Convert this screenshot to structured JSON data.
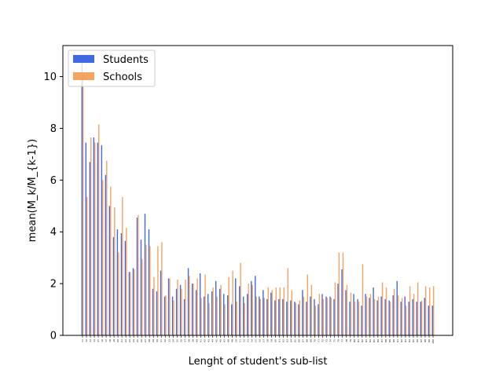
{
  "chart_data": {
    "type": "bar",
    "title": "",
    "xlabel": "Lenght of student's sub-list",
    "ylabel": "mean(M_k/M_{k-1})",
    "ylim": [
      0,
      11.2
    ],
    "yticks": [
      0,
      2,
      4,
      6,
      8,
      10
    ],
    "grid": false,
    "legend_position": "top-left",
    "categories": [
      11,
      12,
      13,
      14,
      15,
      16,
      17,
      18,
      19,
      20,
      21,
      22,
      23,
      24,
      25,
      26,
      27,
      28,
      29,
      30,
      31,
      32,
      33,
      34,
      35,
      36,
      37,
      38,
      39,
      40,
      41,
      42,
      43,
      44,
      45,
      46,
      47,
      48,
      49,
      50,
      51,
      52,
      53,
      54,
      55,
      56,
      57,
      58,
      59,
      60,
      61,
      62,
      63,
      64,
      65,
      66,
      67,
      68,
      69,
      70,
      71,
      72,
      73,
      74,
      75,
      76,
      77,
      78,
      79,
      80,
      81,
      82,
      83,
      84,
      85,
      86,
      87,
      88,
      89,
      90,
      91,
      92,
      93,
      94,
      95,
      96,
      97,
      98,
      99,
      100
    ],
    "series": [
      {
        "name": "Students",
        "color": "#4169e1",
        "values": [
          10.6,
          7.45,
          6.7,
          7.65,
          7.45,
          7.35,
          6.2,
          5.0,
          3.8,
          4.1,
          3.95,
          3.65,
          2.45,
          2.6,
          4.55,
          3.7,
          4.7,
          4.1,
          1.8,
          1.7,
          2.5,
          1.5,
          2.2,
          1.5,
          1.8,
          1.95,
          1.4,
          2.6,
          2.0,
          1.75,
          2.4,
          1.5,
          1.6,
          1.7,
          2.1,
          1.8,
          1.6,
          1.55,
          1.2,
          2.2,
          1.9,
          1.5,
          1.6,
          2.1,
          2.3,
          1.5,
          1.75,
          1.4,
          1.65,
          1.35,
          1.4,
          1.4,
          1.3,
          1.35,
          1.3,
          1.2,
          1.75,
          1.3,
          1.5,
          1.4,
          1.2,
          1.6,
          1.5,
          1.5,
          1.4,
          2.0,
          2.55,
          1.75,
          1.3,
          1.6,
          1.4,
          1.15,
          1.6,
          1.45,
          1.85,
          1.35,
          1.5,
          1.4,
          1.35,
          1.55,
          2.1,
          1.3,
          1.5,
          1.3,
          1.4,
          1.3,
          1.3,
          1.45,
          1.15,
          1.15
        ]
      },
      {
        "name": "Schools",
        "color": "#f4a460",
        "values": [
          9.95,
          5.35,
          7.65,
          7.45,
          8.15,
          6.0,
          6.75,
          5.75,
          4.95,
          3.2,
          5.35,
          4.15,
          2.45,
          2.55,
          4.65,
          2.95,
          3.5,
          3.45,
          2.25,
          3.45,
          3.6,
          1.55,
          2.2,
          1.35,
          2.15,
          1.8,
          2.15,
          2.3,
          2.0,
          2.2,
          1.45,
          2.35,
          1.25,
          1.85,
          1.5,
          1.95,
          1.2,
          2.25,
          2.5,
          1.3,
          2.8,
          1.25,
          2.0,
          1.95,
          1.5,
          1.4,
          1.45,
          1.85,
          1.75,
          1.85,
          1.85,
          1.85,
          2.6,
          1.75,
          1.25,
          1.35,
          1.5,
          2.35,
          1.95,
          1.15,
          1.6,
          1.4,
          1.45,
          1.45,
          2.05,
          3.2,
          3.2,
          1.95,
          1.65,
          1.3,
          1.3,
          2.75,
          1.5,
          1.6,
          1.4,
          1.5,
          2.05,
          1.85,
          1.3,
          1.8,
          1.55,
          1.45,
          1.15,
          1.9,
          1.6,
          2.05,
          1.35,
          1.9,
          1.85,
          1.9
        ]
      }
    ]
  }
}
